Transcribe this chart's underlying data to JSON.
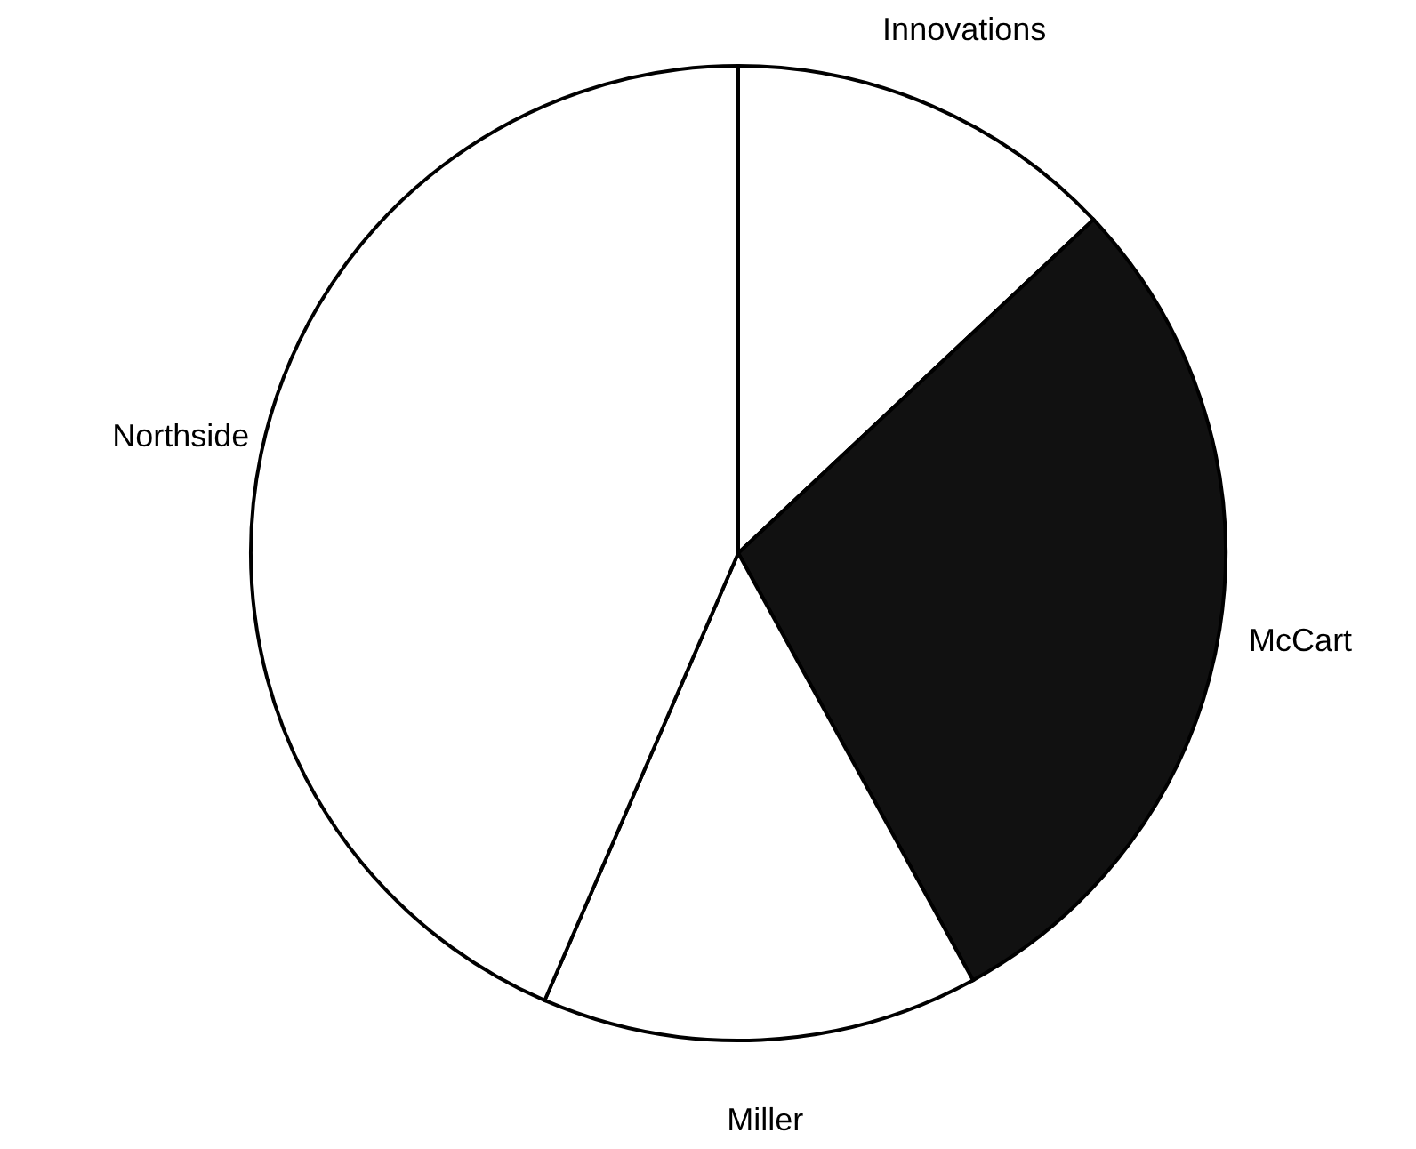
{
  "chart_data": {
    "type": "pie",
    "categories": [
      "Innovations",
      "McCart",
      "Miller",
      "Northside"
    ],
    "values": [
      13,
      29,
      14.5,
      43.5
    ],
    "colors": [
      "#ffffff",
      "#111111",
      "#ffffff",
      "#ffffff"
    ]
  }
}
